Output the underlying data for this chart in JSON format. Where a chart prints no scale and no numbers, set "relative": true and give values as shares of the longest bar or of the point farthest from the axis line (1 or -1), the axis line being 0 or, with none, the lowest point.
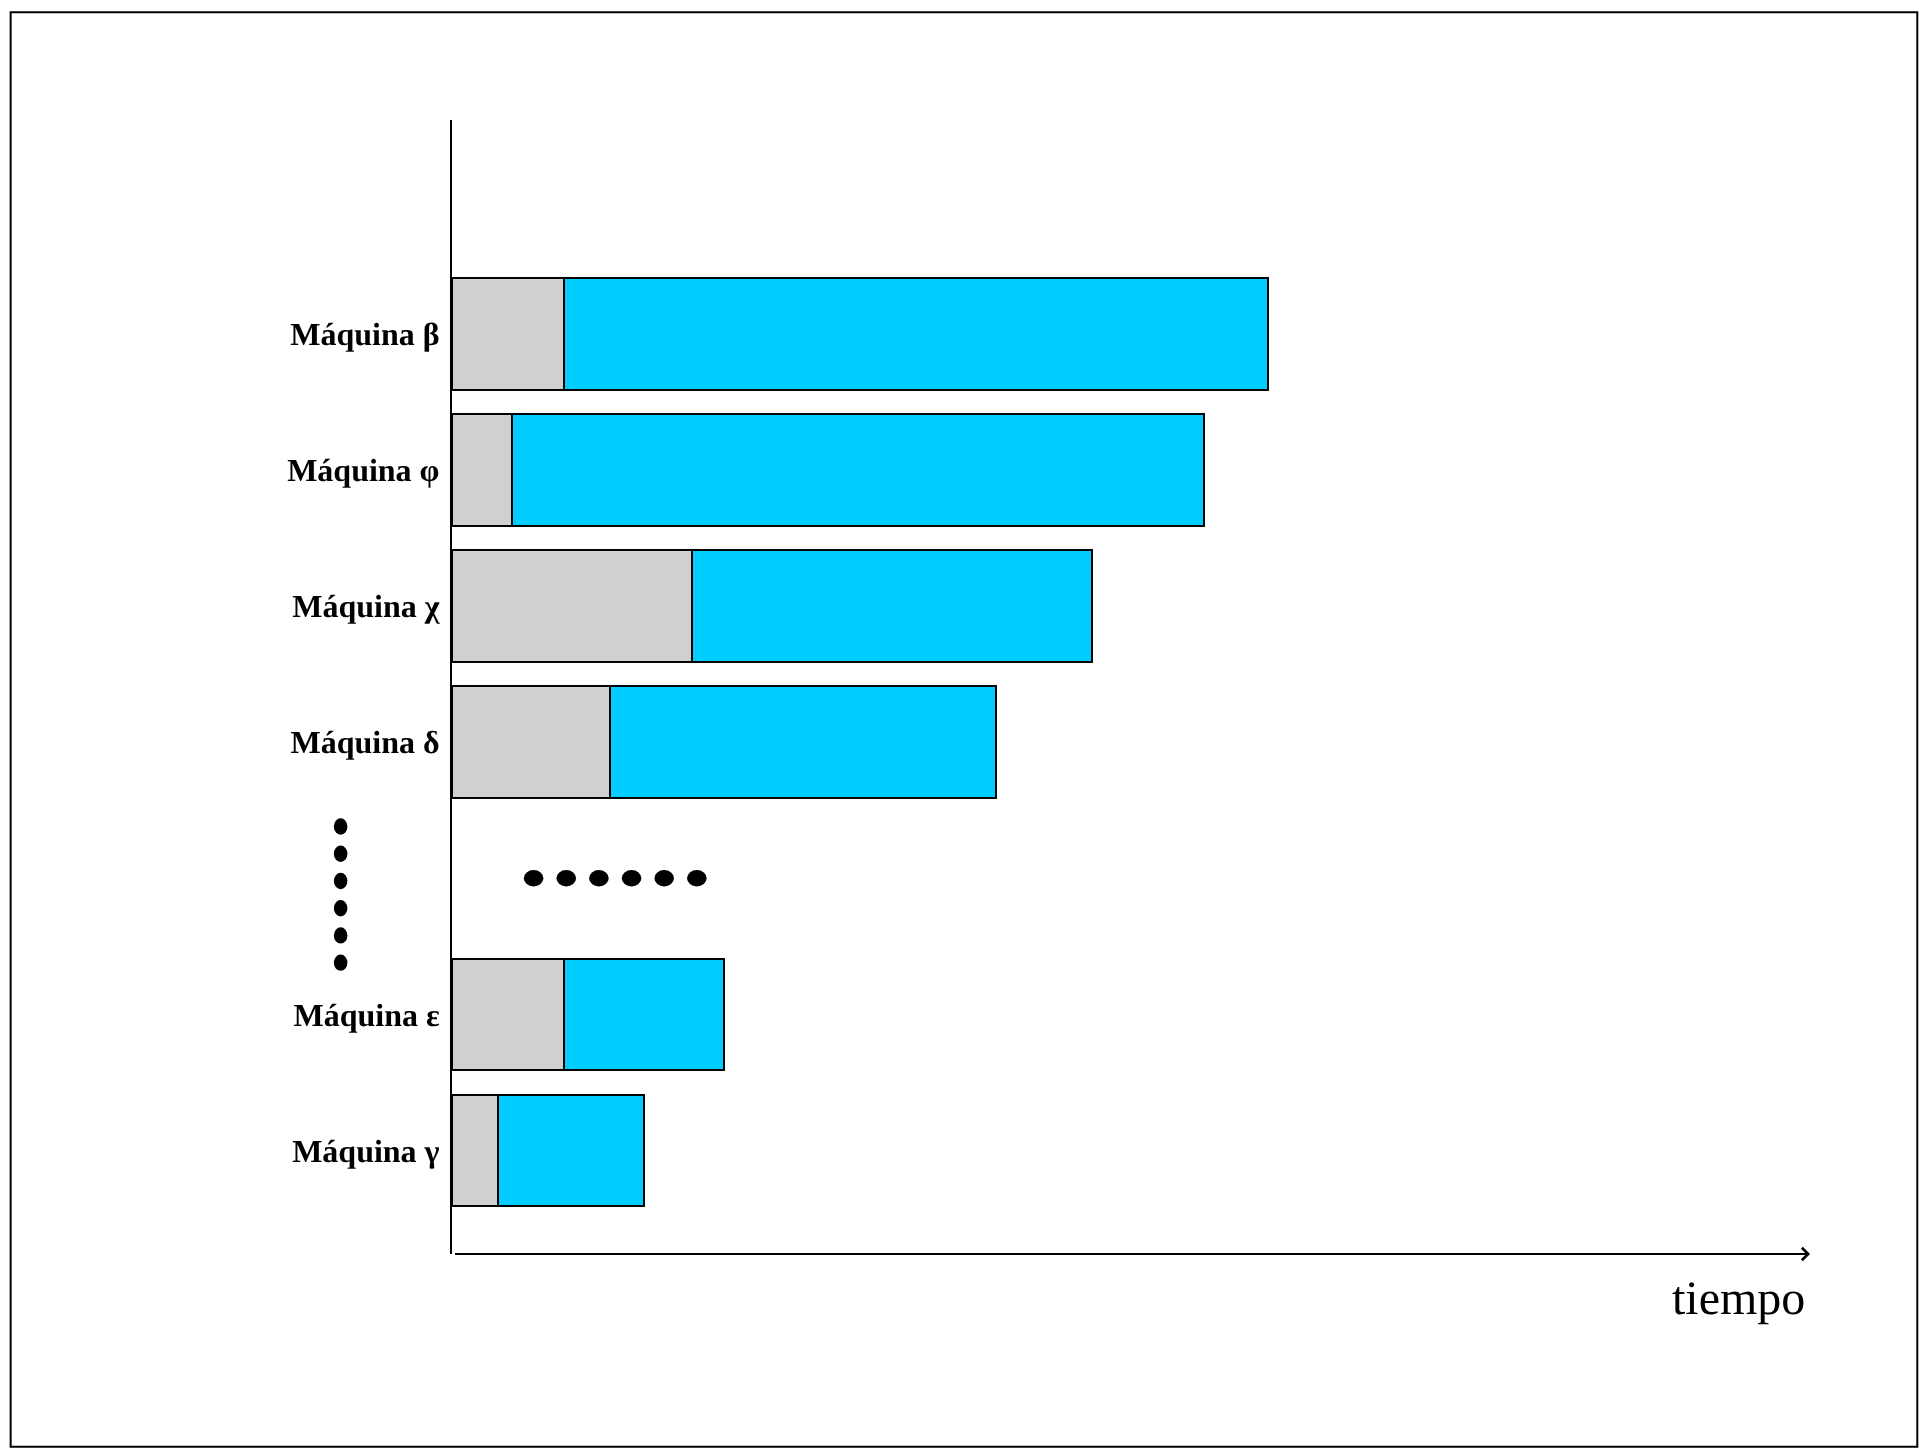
{
  "chart_data": {
    "type": "bar",
    "orientation": "horizontal",
    "stacked": true,
    "relative": true,
    "annotations": [
      "tiempo"
    ],
    "categories": [
      "Máquina β",
      "Máquina φ",
      "Máquina χ",
      "Máquina δ",
      null,
      "Máquina ε",
      "Máquina γ"
    ],
    "series": [
      {
        "color": "#d0d0d0",
        "values": [
          0.137,
          0.074,
          0.294,
          0.194,
          null,
          0.137,
          0.056
        ]
      },
      {
        "color": "#00ccff",
        "values": [
          0.863,
          0.848,
          0.49,
          0.473,
          null,
          0.196,
          0.179
        ]
      }
    ]
  }
}
